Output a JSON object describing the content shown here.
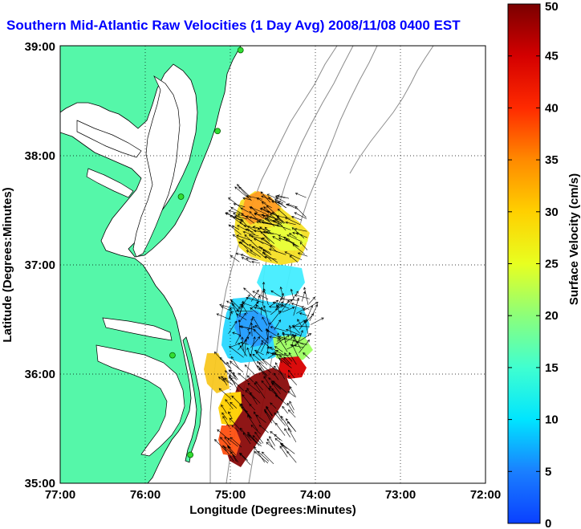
{
  "title": "Southern Mid-Atlantic Raw Velocities (1 Day Avg) 2008/11/08 0400 EST",
  "x_axis": {
    "label": "Longitude (Degrees:Minutes)",
    "ticks": [
      "77:00",
      "76:00",
      "75:00",
      "74:00",
      "73:00",
      "72:00"
    ]
  },
  "y_axis": {
    "label": "Latitude (Degrees:Minutes)",
    "ticks": [
      "35:00",
      "36:00",
      "37:00",
      "38:00",
      "39:00"
    ]
  },
  "colorbar": {
    "label": "Surface Velocity (cm/s)",
    "ticks": [
      "0",
      "5",
      "10",
      "15",
      "20",
      "25",
      "30",
      "35",
      "40",
      "45",
      "50"
    ],
    "min": 0,
    "max": 50
  },
  "map": {
    "extent": {
      "lon_min": -77,
      "lon_max": -72,
      "lat_min": 35,
      "lat_max": 39
    },
    "land_color": "#55f7a9",
    "coast_color": "#000000",
    "bathymetry_color": "#8c8c8c",
    "grid": "dotted",
    "stations": [
      {
        "lon": -74.88,
        "lat": 38.96
      },
      {
        "lon": -75.15,
        "lat": 38.22
      },
      {
        "lon": -75.58,
        "lat": 37.62
      },
      {
        "lon": -75.68,
        "lat": 36.17
      },
      {
        "lon": -75.47,
        "lat": 35.26
      }
    ]
  }
}
